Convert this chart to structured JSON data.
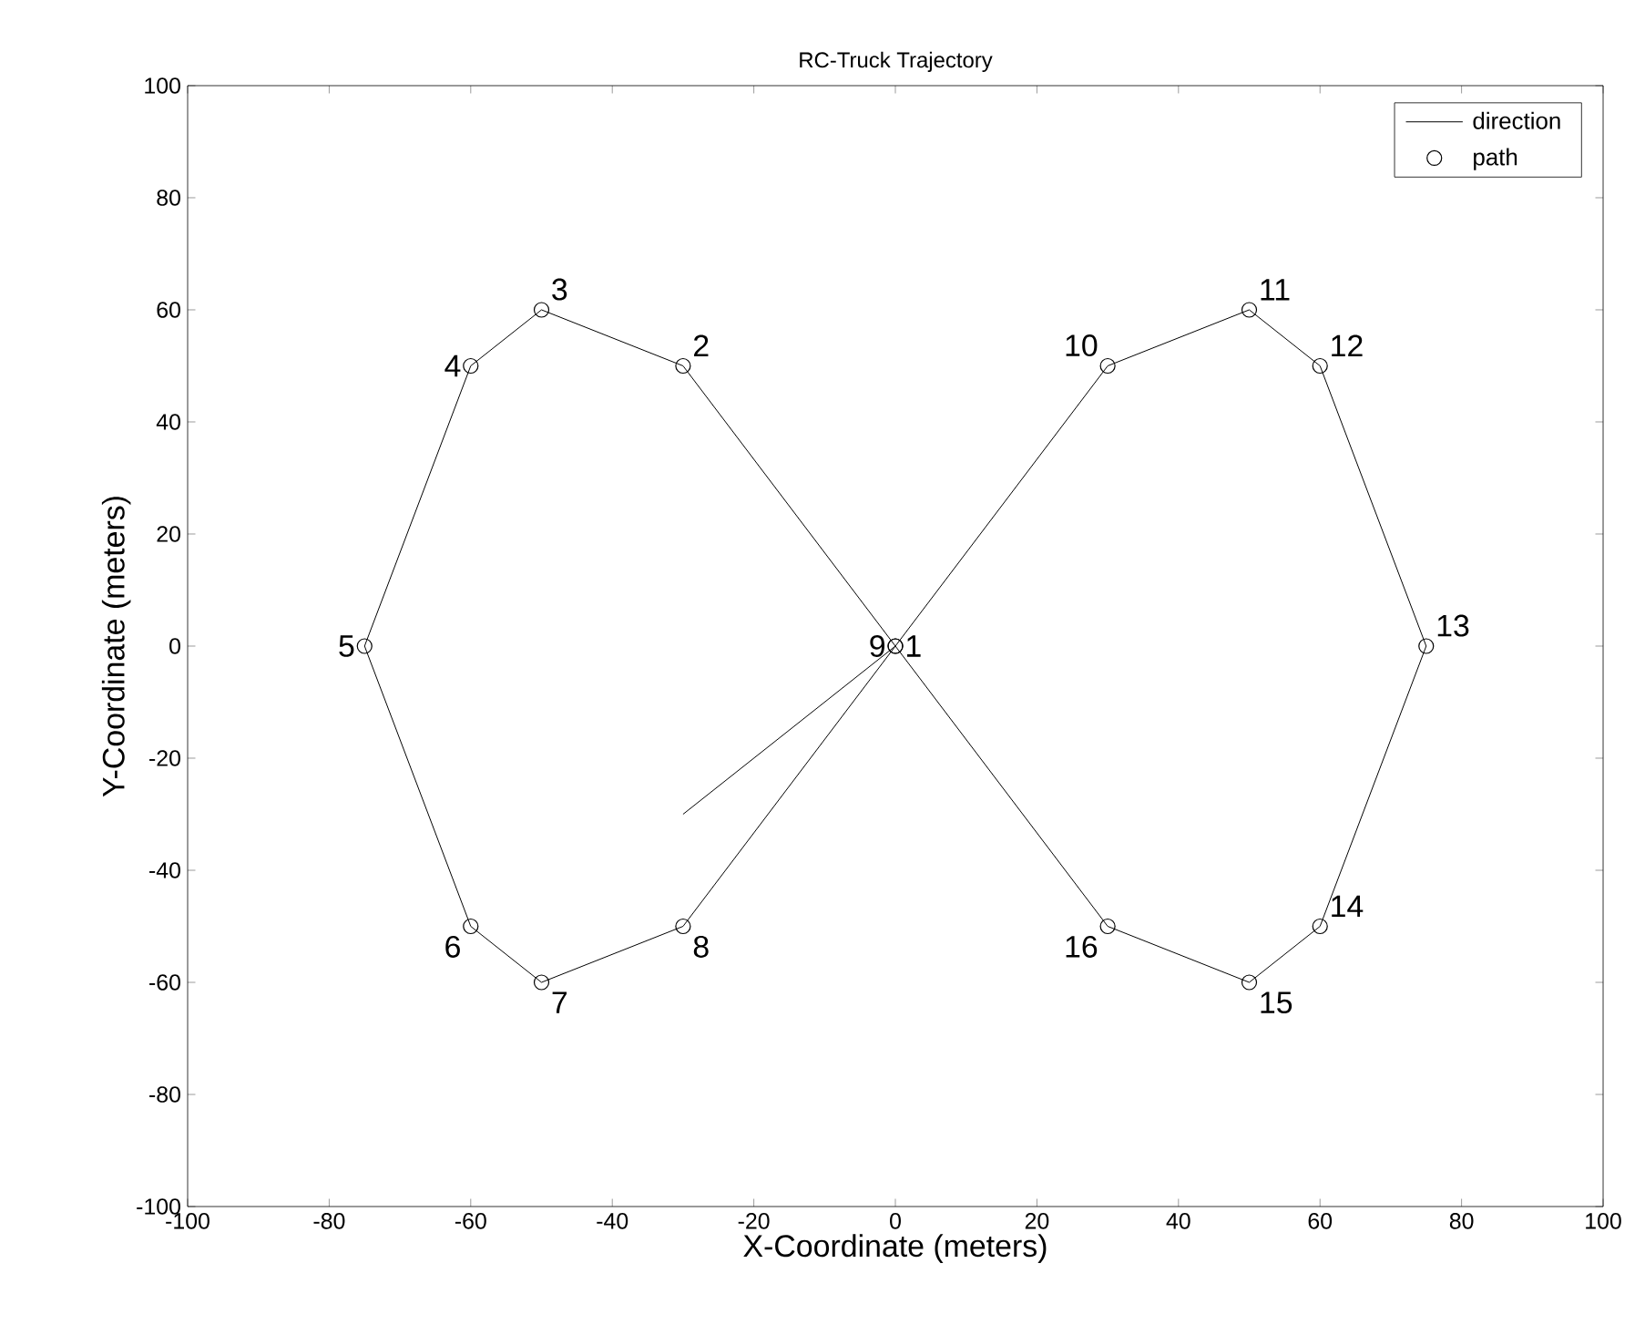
{
  "chart_data": {
    "type": "line",
    "title": "RC-Truck Trajectory",
    "xlabel": "X-Coordinate (meters)",
    "ylabel": "Y-Coordinate (meters)",
    "xlim": [
      -100,
      100
    ],
    "ylim": [
      -100,
      100
    ],
    "xticks": [
      -100,
      -80,
      -60,
      -40,
      -20,
      0,
      20,
      40,
      60,
      80,
      100
    ],
    "yticks": [
      -100,
      -80,
      -60,
      -40,
      -20,
      0,
      20,
      40,
      60,
      80,
      100
    ],
    "grid": false,
    "legend": "top right",
    "series": [
      {
        "name": "direction",
        "color": "#000000",
        "marker": "none",
        "line_style": "solid",
        "x": [
          -30,
          0,
          30,
          50,
          60,
          75,
          60,
          50,
          30,
          0,
          -30,
          -50,
          -60,
          -75,
          -60,
          -50,
          -30,
          0
        ],
        "values": [
          -30,
          0,
          50,
          60,
          50,
          0,
          -50,
          -60,
          -50,
          0,
          50,
          60,
          50,
          0,
          -50,
          -60,
          -50,
          0
        ]
      },
      {
        "name": "path",
        "type": "scatter",
        "color": "#000000",
        "marker": "circle",
        "x": [
          0,
          -30,
          -50,
          -60,
          -75,
          -60,
          -50,
          -30,
          0,
          30,
          50,
          60,
          75,
          60,
          50,
          30
        ],
        "values": [
          0,
          50,
          60,
          50,
          0,
          -50,
          -60,
          -50,
          0,
          50,
          60,
          50,
          0,
          -50,
          -60,
          -50
        ]
      }
    ],
    "annotations": [
      {
        "text": "1",
        "x": 0,
        "y": 0
      },
      {
        "text": "2",
        "x": -30,
        "y": 50
      },
      {
        "text": "3",
        "x": -50,
        "y": 60
      },
      {
        "text": "4",
        "x": -60,
        "y": 50
      },
      {
        "text": "5",
        "x": -75,
        "y": 0
      },
      {
        "text": "6",
        "x": -60,
        "y": -50
      },
      {
        "text": "7",
        "x": -50,
        "y": -60
      },
      {
        "text": "8",
        "x": -30,
        "y": -50
      },
      {
        "text": "9",
        "x": 0,
        "y": 0
      },
      {
        "text": "10",
        "x": 30,
        "y": 50
      },
      {
        "text": "11",
        "x": 50,
        "y": 60
      },
      {
        "text": "12",
        "x": 60,
        "y": 50
      },
      {
        "text": "13",
        "x": 75,
        "y": 0
      },
      {
        "text": "14",
        "x": 60,
        "y": -50
      },
      {
        "text": "15",
        "x": 50,
        "y": -60
      },
      {
        "text": "16",
        "x": 30,
        "y": -50
      }
    ]
  }
}
